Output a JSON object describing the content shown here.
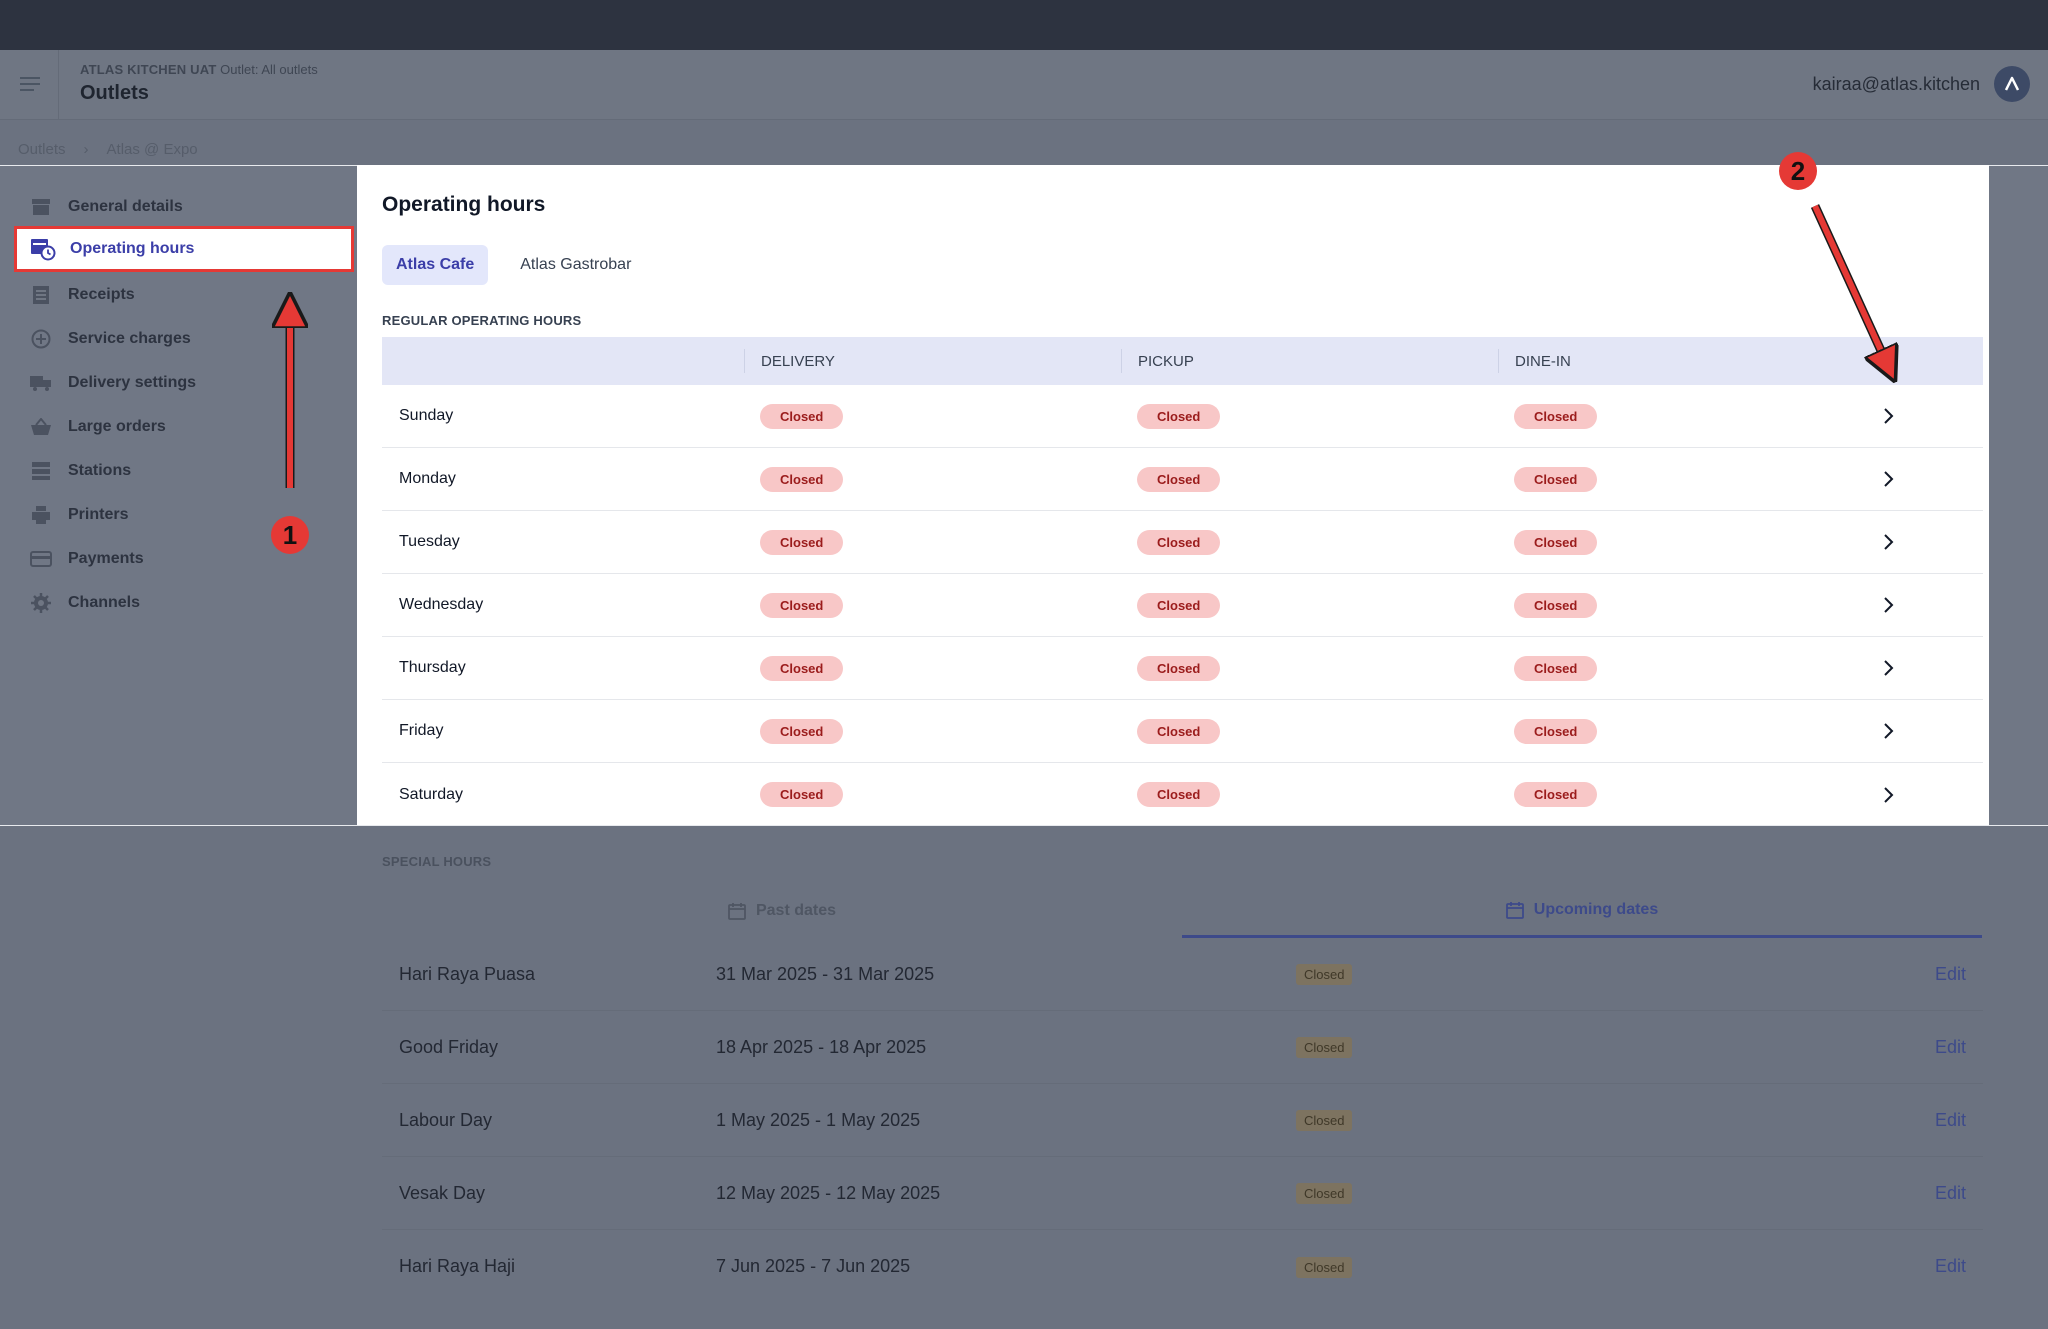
{
  "header": {
    "brand": "ATLAS KITCHEN UAT",
    "outlet_scope": "Outlet: All outlets",
    "title": "Outlets",
    "user_email": "kairaa@atlas.kitchen"
  },
  "breadcrumb": [
    "Outlets",
    "Atlas @ Expo"
  ],
  "sidebar": {
    "items": [
      {
        "label": "General details",
        "icon": "store-icon"
      },
      {
        "label": "Operating hours",
        "icon": "clock-calendar-icon"
      },
      {
        "label": "Receipts",
        "icon": "receipt-icon"
      },
      {
        "label": "Service charges",
        "icon": "plus-circle-icon"
      },
      {
        "label": "Delivery settings",
        "icon": "truck-icon"
      },
      {
        "label": "Large orders",
        "icon": "basket-icon"
      },
      {
        "label": "Stations",
        "icon": "stations-icon"
      },
      {
        "label": "Printers",
        "icon": "printer-icon"
      },
      {
        "label": "Payments",
        "icon": "card-icon"
      },
      {
        "label": "Channels",
        "icon": "gear-icon"
      }
    ],
    "active_index": 1
  },
  "panel": {
    "title": "Operating hours",
    "tabs": [
      "Atlas Cafe",
      "Atlas Gastrobar"
    ],
    "active_tab": 0,
    "section_label": "REGULAR OPERATING HOURS",
    "columns": [
      "DELIVERY",
      "PICKUP",
      "DINE-IN"
    ],
    "rows": [
      {
        "day": "Sunday",
        "delivery": "Closed",
        "pickup": "Closed",
        "dinein": "Closed"
      },
      {
        "day": "Monday",
        "delivery": "Closed",
        "pickup": "Closed",
        "dinein": "Closed"
      },
      {
        "day": "Tuesday",
        "delivery": "Closed",
        "pickup": "Closed",
        "dinein": "Closed"
      },
      {
        "day": "Wednesday",
        "delivery": "Closed",
        "pickup": "Closed",
        "dinein": "Closed"
      },
      {
        "day": "Thursday",
        "delivery": "Closed",
        "pickup": "Closed",
        "dinein": "Closed"
      },
      {
        "day": "Friday",
        "delivery": "Closed",
        "pickup": "Closed",
        "dinein": "Closed"
      },
      {
        "day": "Saturday",
        "delivery": "Closed",
        "pickup": "Closed",
        "dinein": "Closed"
      }
    ]
  },
  "special": {
    "label": "SPECIAL HOURS",
    "tabs": [
      "Past dates",
      "Upcoming dates"
    ],
    "active_tab": 1,
    "rows": [
      {
        "name": "Hari Raya Puasa",
        "dates": "31 Mar 2025 - 31 Mar 2025",
        "status": "Closed",
        "action": "Edit"
      },
      {
        "name": "Good Friday",
        "dates": "18 Apr 2025 - 18 Apr 2025",
        "status": "Closed",
        "action": "Edit"
      },
      {
        "name": "Labour Day",
        "dates": "1 May 2025 - 1 May 2025",
        "status": "Closed",
        "action": "Edit"
      },
      {
        "name": "Vesak Day",
        "dates": "12 May 2025 - 12 May 2025",
        "status": "Closed",
        "action": "Edit"
      },
      {
        "name": "Hari Raya Haji",
        "dates": "7 Jun 2025 - 7 Jun 2025",
        "status": "Closed",
        "action": "Edit"
      }
    ]
  },
  "annotations": {
    "badge1": "1",
    "badge2": "2",
    "color": "#e53935"
  }
}
